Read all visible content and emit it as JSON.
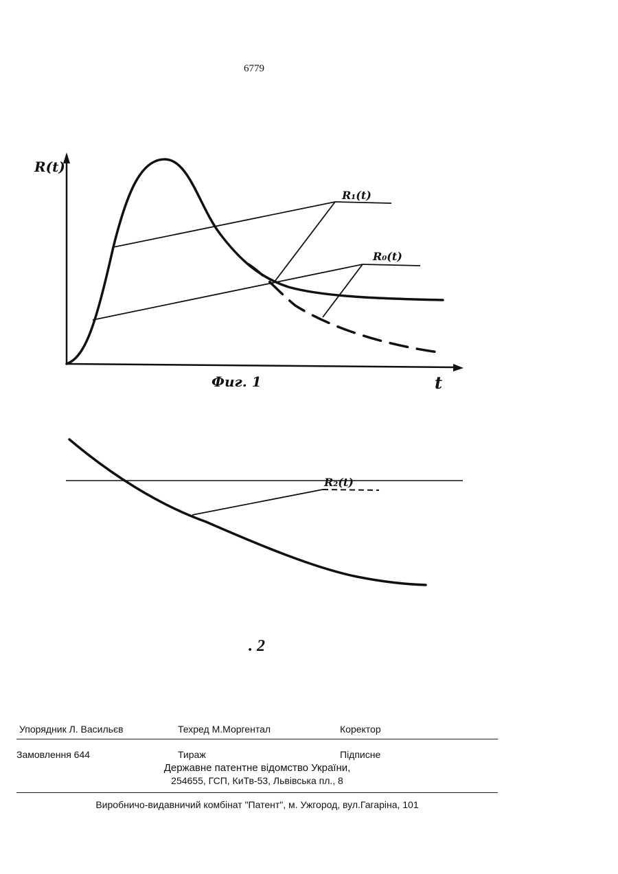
{
  "page_number": "6779",
  "figure1": {
    "y_axis_label": "R(t)",
    "x_axis_label": "t",
    "caption": "Фиг. 1",
    "curve_labels": {
      "r1": "R₁(t)",
      "r0": "R₀(t)"
    }
  },
  "figure2": {
    "curve_label": "R₂(t)",
    "caption": ". 2"
  },
  "footer": {
    "compiler": "Упорядник Л. Васильєв",
    "tech_editor": "Техред М.Моргентал",
    "corrector": "Коректор",
    "order": "Замовлення 644",
    "circulation": "Тираж",
    "subscription": "Підписне",
    "office_line1": "Державне патентне відомство України,",
    "office_line2": "254655, ГСП, КиТв-53, Львівська пл., 8",
    "publisher": "Виробничо-видавничий комбінат  \"Патент\", м. Ужгород, вул.Гагаріна, 101"
  }
}
